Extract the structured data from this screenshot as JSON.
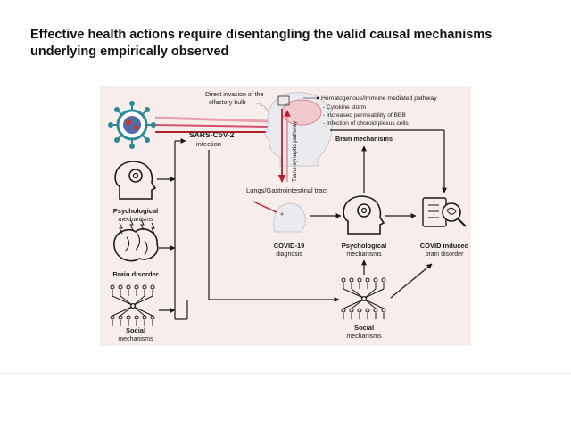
{
  "slide": {
    "title_line1": "Effective health actions require disentangling the valid causal mechanisms",
    "title_line2": "underlying empirically observed"
  },
  "diagram": {
    "virus_label_1": "SARS-CoV-2",
    "virus_label_2": "infection",
    "direct_invasion_1": "Direct invasion of the",
    "direct_invasion_2": "olfactory bulb",
    "hematogenous": "Hematogenous/Immune mediated pathway",
    "bullets": [
      "- Cytokine storm",
      "- Increased permeability of BBB",
      "- Infection of choroid plexus cells"
    ],
    "trans_synaptic": "Trans-synaptic pathway",
    "brain_mechanisms": "Brain mechanisms",
    "lungs": "Lungs/Gastrointestinal tract",
    "left_psych_1": "Psychological",
    "left_psych_2": "mechanisms",
    "brain_disorder": "Brain disorder",
    "left_social_1": "Social",
    "left_social_2": "mechanisms",
    "covid_dx_1": "COVID-19",
    "covid_dx_2": "diagnosis",
    "mid_psych_1": "Psychological",
    "mid_psych_2": "mechanisms",
    "covid_induced_1": "COVID induced",
    "covid_induced_2": "brain disorder",
    "mid_social_1": "Social",
    "mid_social_2": "mechanisms"
  },
  "colors": {
    "background": "#f7eeec",
    "virus": "#2a8a96",
    "virus_spike": "#c0392b",
    "pathway_red": "#b3222c",
    "pathway_pink": "#e8a0b0",
    "line": "#1a1a1a"
  }
}
